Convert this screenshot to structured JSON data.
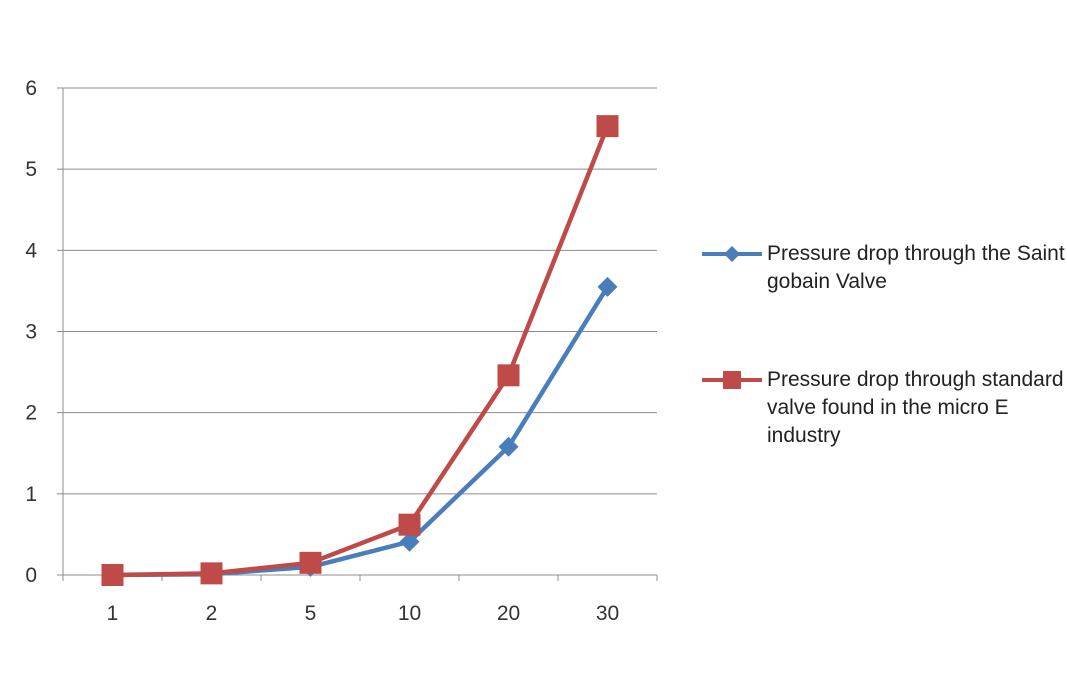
{
  "chart_data": {
    "type": "line",
    "title": "",
    "xlabel": "",
    "ylabel": "",
    "categories": [
      "1",
      "2",
      "5",
      "10",
      "20",
      "30"
    ],
    "ylim": [
      0,
      6
    ],
    "yticks": [
      "0",
      "1",
      "2",
      "3",
      "4",
      "5",
      "6"
    ],
    "grid": true,
    "legend_position": "right",
    "series": [
      {
        "name": "Pressure drop through the Saint gobain Valve",
        "values": [
          0,
          0.01,
          0.1,
          0.41,
          1.58,
          3.55
        ],
        "color": "#4a7ebb",
        "marker": "diamond"
      },
      {
        "name": "Pressure drop through standard valve found in the micro E industry",
        "values": [
          0,
          0.02,
          0.15,
          0.62,
          2.46,
          5.53
        ],
        "color": "#be4b48",
        "marker": "square"
      }
    ]
  }
}
